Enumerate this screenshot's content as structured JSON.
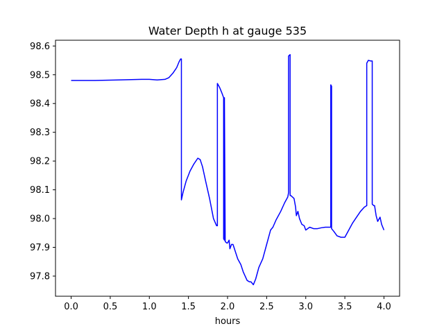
{
  "chart_data": {
    "type": "line",
    "title": "Water Depth h at gauge 535",
    "xlabel": "hours",
    "ylabel": "",
    "xlim": [
      -0.2,
      4.2
    ],
    "ylim": [
      97.73,
      98.62
    ],
    "xticks": [
      0.0,
      0.5,
      1.0,
      1.5,
      2.0,
      2.5,
      3.0,
      3.5,
      4.0
    ],
    "xtick_labels": [
      "0.0",
      "0.5",
      "1.0",
      "1.5",
      "2.0",
      "2.5",
      "3.0",
      "3.5",
      "4.0"
    ],
    "yticks": [
      97.8,
      97.9,
      98.0,
      98.1,
      98.2,
      98.3,
      98.4,
      98.5,
      98.6
    ],
    "ytick_labels": [
      "97.8",
      "97.9",
      "98.0",
      "98.1",
      "98.2",
      "98.3",
      "98.4",
      "98.5",
      "98.6"
    ],
    "grid": false,
    "series": [
      {
        "color": "#0000ff",
        "x": [
          0.0,
          0.3,
          0.6,
          0.9,
          1.0,
          1.1,
          1.2,
          1.25,
          1.3,
          1.35,
          1.38,
          1.4,
          1.41,
          1.41,
          1.43,
          1.47,
          1.52,
          1.57,
          1.62,
          1.65,
          1.68,
          1.72,
          1.77,
          1.82,
          1.86,
          1.87,
          1.87,
          1.9,
          1.93,
          1.93,
          1.95,
          1.95,
          1.96,
          1.96,
          1.97,
          1.99,
          2.0,
          2.01,
          2.02,
          2.03,
          2.05,
          2.07,
          2.1,
          2.13,
          2.17,
          2.2,
          2.25,
          2.28,
          2.3,
          2.33,
          2.36,
          2.4,
          2.45,
          2.5,
          2.55,
          2.58,
          2.62,
          2.68,
          2.73,
          2.77,
          2.78,
          2.78,
          2.8,
          2.8,
          2.81,
          2.85,
          2.87,
          2.88,
          2.9,
          2.92,
          2.95,
          2.98,
          3.0,
          3.05,
          3.1,
          3.15,
          3.2,
          3.25,
          3.3,
          3.32,
          3.32,
          3.33,
          3.33,
          3.36,
          3.4,
          3.45,
          3.5,
          3.55,
          3.6,
          3.65,
          3.7,
          3.75,
          3.78,
          3.78,
          3.8,
          3.83,
          3.85,
          3.85,
          3.87,
          3.88,
          3.9,
          3.92,
          3.95,
          3.97,
          4.0
        ],
        "y": [
          98.48,
          98.48,
          98.482,
          98.484,
          98.484,
          98.482,
          98.484,
          98.49,
          98.505,
          98.525,
          98.545,
          98.555,
          98.555,
          98.065,
          98.09,
          98.13,
          98.165,
          98.19,
          98.21,
          98.205,
          98.18,
          98.13,
          98.07,
          98.0,
          97.975,
          97.975,
          98.47,
          98.455,
          98.435,
          98.435,
          98.42,
          97.93,
          97.925,
          98.42,
          97.92,
          97.915,
          97.915,
          97.92,
          97.925,
          97.895,
          97.91,
          97.91,
          97.885,
          97.86,
          97.84,
          97.815,
          97.785,
          97.78,
          97.78,
          97.77,
          97.79,
          97.83,
          97.86,
          97.91,
          97.96,
          97.97,
          97.995,
          98.025,
          98.055,
          98.075,
          98.09,
          98.565,
          98.57,
          98.08,
          98.08,
          98.07,
          98.04,
          98.01,
          98.025,
          98.0,
          97.98,
          97.975,
          97.96,
          97.97,
          97.965,
          97.965,
          97.968,
          97.97,
          97.97,
          97.97,
          98.465,
          98.46,
          97.965,
          97.955,
          97.94,
          97.935,
          97.935,
          97.96,
          97.985,
          98.005,
          98.025,
          98.04,
          98.045,
          98.54,
          98.55,
          98.548,
          98.548,
          98.05,
          98.045,
          98.045,
          98.01,
          97.99,
          98.005,
          97.98,
          97.96
        ]
      }
    ]
  }
}
